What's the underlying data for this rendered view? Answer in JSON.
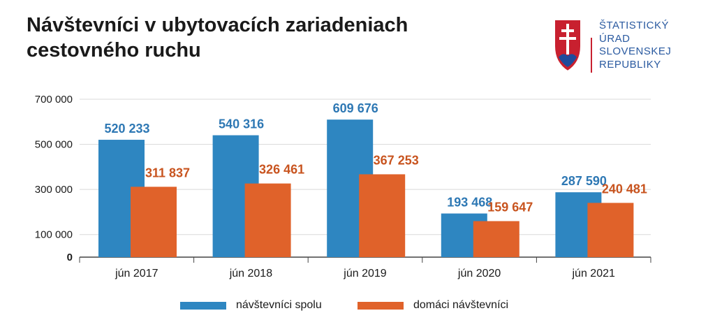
{
  "title_line1": "Návštevníci v ubytovacích zariadeniach",
  "title_line2": "cestovného ruchu",
  "logo": {
    "lines": [
      "ŠTATISTICKÝ",
      "ÚRAD",
      "SLOVENSKEJ",
      "REPUBLIKY"
    ],
    "icon": "slovak-coat-of-arms-icon"
  },
  "colors": {
    "series1": "#2e86c1",
    "series2": "#e0622a",
    "label1": "#2e78b4",
    "label2": "#c8541f",
    "grid": "#d9d9d9",
    "text": "#1a1a1a"
  },
  "chart_data": {
    "type": "bar",
    "title": "Návštevníci v ubytovacích zariadeniach cestovného ruchu",
    "categories": [
      "jún 2017",
      "jún 2018",
      "jún 2019",
      "jún 2020",
      "jún 2021"
    ],
    "series": [
      {
        "name": "návštevníci spolu",
        "values": [
          520233,
          540316,
          609676,
          193468,
          287590
        ],
        "labels": [
          "520 233",
          "540 316",
          "609 676",
          "193 468",
          "287 590"
        ]
      },
      {
        "name": "domáci návštevníci",
        "values": [
          311837,
          326461,
          367253,
          159647,
          240481
        ],
        "labels": [
          "311 837",
          "326 461",
          "367 253",
          "159 647",
          "240 481"
        ]
      }
    ],
    "yticks": [
      "0",
      "100 000",
      "300 000",
      "500 000",
      "700 000"
    ],
    "ytick_values": [
      0,
      100000,
      300000,
      500000,
      700000
    ],
    "ylim": [
      0,
      700000
    ],
    "grid": true,
    "legend_position": "bottom"
  }
}
